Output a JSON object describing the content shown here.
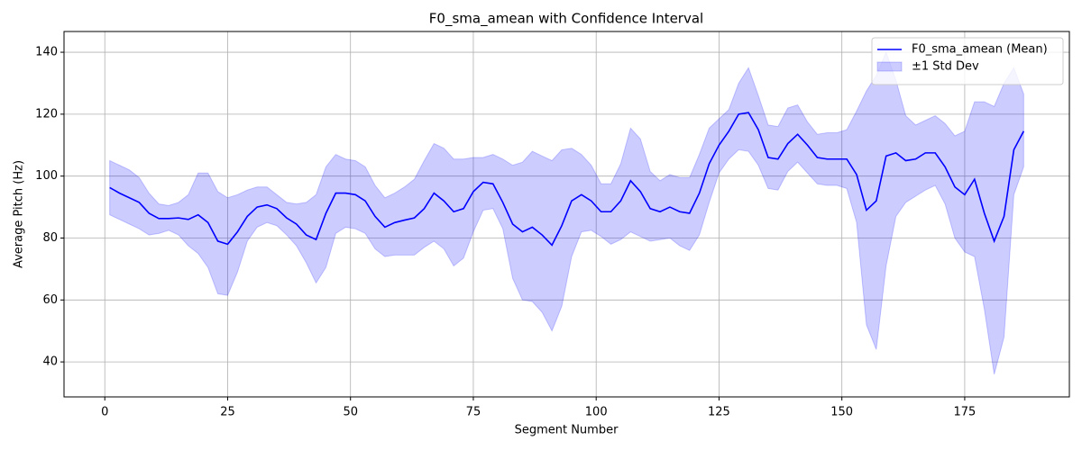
{
  "chart_data": {
    "type": "line",
    "title": "F0_sma_amean with Confidence Interval",
    "xlabel": "Segment Number",
    "ylabel": "Average Pitch (Hz)",
    "x": [
      1,
      3,
      5,
      7,
      9,
      11,
      13,
      15,
      17,
      19,
      21,
      23,
      25,
      27,
      29,
      31,
      33,
      35,
      37,
      39,
      41,
      43,
      45,
      47,
      49,
      51,
      53,
      55,
      57,
      59,
      61,
      63,
      65,
      67,
      69,
      71,
      73,
      75,
      77,
      79,
      81,
      83,
      85,
      87,
      89,
      91,
      93,
      95,
      97,
      99,
      101,
      103,
      105,
      107,
      109,
      111,
      113,
      115,
      117,
      119,
      121,
      123,
      125,
      127,
      129,
      131,
      133,
      135,
      137,
      139,
      141,
      143,
      145,
      147,
      149,
      151,
      153,
      155,
      157,
      159,
      161,
      163,
      165,
      167,
      169,
      171,
      173,
      175,
      177,
      179,
      181,
      183,
      185,
      187
    ],
    "series": [
      {
        "name": "F0_sma_amean (Mean)",
        "color": "#0000ff",
        "values": [
          96.3,
          94.5,
          93,
          91.5,
          88,
          86.3,
          86.3,
          86.5,
          86,
          87.5,
          85,
          79,
          78,
          82,
          87,
          90,
          90.7,
          89.5,
          86.5,
          84.5,
          81,
          79.5,
          88,
          94.5,
          94.5,
          94,
          92,
          87,
          83.5,
          85,
          85.8,
          86.5,
          89.5,
          94.5,
          92,
          88.5,
          89.5,
          95,
          98,
          97.5,
          91.5,
          84.5,
          82,
          83.5,
          81,
          77.7,
          84,
          92,
          94,
          92,
          88.5,
          88.5,
          92,
          98.5,
          95,
          89.5,
          88.5,
          90,
          88.5,
          88,
          94.5,
          104,
          110,
          114.5,
          120,
          120.5,
          115,
          106,
          105.5,
          110.5,
          113.5,
          110,
          106,
          105.5,
          105.5,
          105.5,
          100.5,
          89,
          92,
          106.5,
          107.5,
          105,
          105.5,
          107.5,
          107.5,
          103,
          96.5,
          94,
          99,
          88,
          79,
          87,
          108.5,
          114.5
        ]
      }
    ],
    "band": {
      "name": "±1 Std Dev",
      "color": "#0000ff",
      "upper": [
        105,
        103.5,
        102,
        99.5,
        94.5,
        91,
        90.5,
        91.5,
        94,
        101,
        101,
        95,
        93,
        94,
        95.5,
        96.5,
        96.5,
        94,
        91.5,
        91,
        91.5,
        94,
        103,
        107,
        105.5,
        105,
        103,
        97,
        93,
        94.5,
        96.5,
        99,
        105,
        110.5,
        109,
        105.5,
        105.5,
        106,
        106,
        107,
        105.5,
        103.5,
        104.5,
        108,
        106.5,
        105,
        108.5,
        109,
        107,
        103.5,
        97.5,
        97.5,
        104,
        115.5,
        112,
        101.5,
        98.5,
        100.5,
        99.5,
        99.5,
        107,
        115.5,
        118.5,
        121.5,
        130,
        135,
        126,
        116.5,
        116,
        122,
        123,
        117.5,
        113.5,
        114,
        114,
        115,
        121,
        127.5,
        132.5,
        140,
        131,
        119.5,
        116.5,
        118,
        119.5,
        117,
        113,
        114.5,
        124,
        124,
        122.5,
        130,
        135,
        126.5
      ],
      "lower": [
        87.5,
        86,
        84.5,
        83,
        81,
        81.5,
        82.5,
        81,
        77.5,
        75,
        70.5,
        62,
        61.5,
        69,
        79,
        83.5,
        85,
        84,
        81,
        77.5,
        72,
        65.5,
        70.5,
        81.5,
        83.5,
        83,
        81.5,
        76.5,
        74,
        74.5,
        74.5,
        74.5,
        77,
        79,
        76.5,
        71,
        73.5,
        82,
        89,
        89.5,
        83,
        67,
        60,
        59.5,
        56,
        50,
        58,
        74,
        82,
        82.5,
        80.5,
        78,
        79.5,
        82,
        80.5,
        79,
        79.5,
        80,
        77.5,
        76,
        81,
        91.5,
        101,
        105.5,
        108.5,
        108,
        103.5,
        96,
        95.5,
        101.5,
        104.5,
        101,
        97.5,
        97,
        97,
        96,
        85,
        52,
        44,
        71,
        87,
        91.5,
        93.5,
        95.5,
        97,
        91,
        80,
        75.5,
        74,
        57,
        36,
        48,
        94,
        103
      ]
    },
    "xlim": [
      -8.3,
      196.3
    ],
    "ylim": [
      28.7,
      146.7
    ],
    "xticks": [
      0,
      25,
      50,
      75,
      100,
      125,
      150,
      175
    ],
    "yticks": [
      40,
      60,
      80,
      100,
      120,
      140
    ],
    "grid": true,
    "legend": "upper right"
  }
}
